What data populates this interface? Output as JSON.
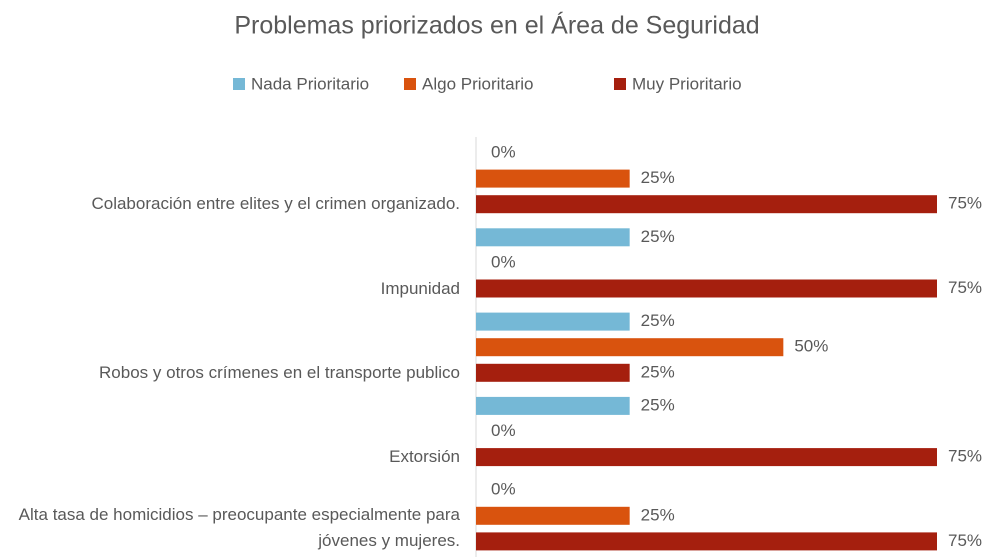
{
  "chart_data": {
    "type": "bar",
    "orientation": "horizontal",
    "title": "Problemas priorizados en el Área de Seguridad",
    "categories": [
      "Colaboración entre elites y el crimen organizado.",
      "Impunidad",
      "Robos y otros crímenes en el transporte publico",
      "Extorsión",
      "Alta tasa de homicidios – preocupante especialmente para jóvenes y mujeres."
    ],
    "series": [
      {
        "name": "Nada Prioritario",
        "color": "#75b8d6",
        "values": [
          0,
          25,
          25,
          25,
          0
        ],
        "value_labels": [
          "0%",
          "25%",
          "25%",
          "25%",
          "0%"
        ]
      },
      {
        "name": "Algo Prioritario",
        "color": "#d9530e",
        "values": [
          25,
          0,
          50,
          0,
          25
        ],
        "value_labels": [
          "25%",
          "0%",
          "50%",
          "0%",
          "25%"
        ]
      },
      {
        "name": "Muy Prioritario",
        "color": "#a51f0e",
        "values": [
          75,
          75,
          25,
          75,
          75
        ],
        "value_labels": [
          "75%",
          "75%",
          "25%",
          "75%",
          "75%"
        ]
      }
    ],
    "xlim": [
      0,
      75
    ],
    "legend": "top"
  }
}
